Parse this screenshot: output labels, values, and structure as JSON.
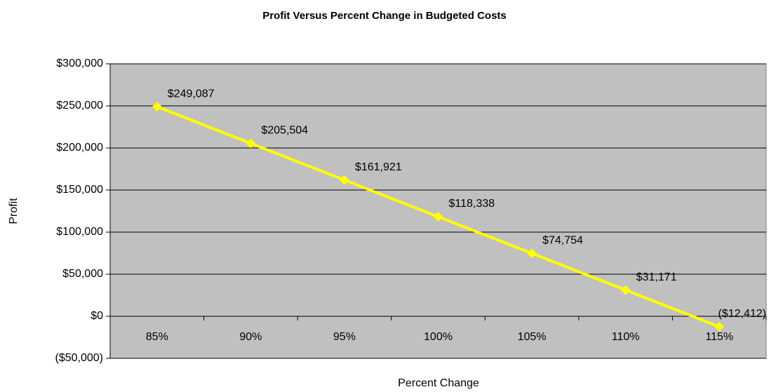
{
  "chart_data": {
    "type": "line",
    "title": "Profit Versus Percent Change in Budgeted Costs",
    "x_label": "Percent Change",
    "y_label": "Profit",
    "categories": [
      "85%",
      "90%",
      "95%",
      "100%",
      "105%",
      "110%",
      "115%"
    ],
    "series": [
      {
        "name": "Profit",
        "color": "#ffff00",
        "values": [
          249087,
          205504,
          161921,
          118338,
          74754,
          31171,
          -12412
        ],
        "value_labels": [
          "$249,087",
          "$205,504",
          "$161,921",
          "$118,338",
          "$74,754",
          "$31,171",
          "($12,412)"
        ]
      }
    ],
    "ylim": [
      -50000,
      300000
    ],
    "yticks": [
      {
        "value": -50000,
        "label": "($50,000)"
      },
      {
        "value": 0,
        "label": "$0"
      },
      {
        "value": 50000,
        "label": "$50,000"
      },
      {
        "value": 100000,
        "label": "$100,000"
      },
      {
        "value": 150000,
        "label": "$150,000"
      },
      {
        "value": 200000,
        "label": "$200,000"
      },
      {
        "value": 250000,
        "label": "$250,000"
      },
      {
        "value": 300000,
        "label": "$300,000"
      }
    ],
    "grid": true,
    "plot_background": "#c0c0c0"
  }
}
